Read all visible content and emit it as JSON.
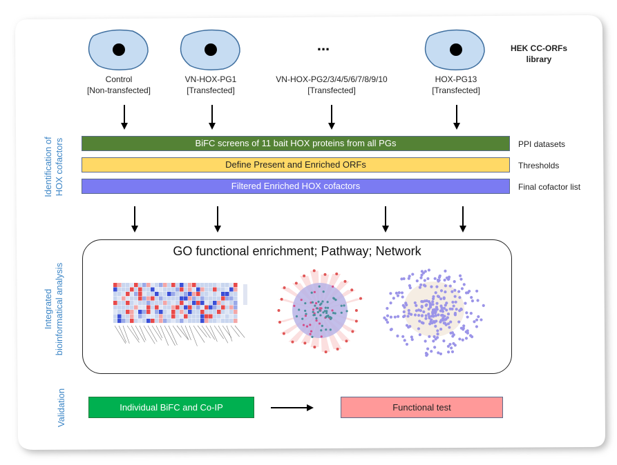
{
  "library_title": "HEK CC-ORFs\nlibrary",
  "cells": [
    {
      "label1": "Control",
      "label2": "[Non-transfected]"
    },
    {
      "label1": "VN-HOX-PG1",
      "label2": "[Transfected]"
    },
    {
      "label1": "VN-HOX-PG2/3/4/5/6/7/8/9/10",
      "label2": "[Transfected]"
    },
    {
      "label1": "HOX-PG13",
      "label2": "[Transfected]"
    }
  ],
  "ellipsis": "...",
  "bars": [
    {
      "text": "BiFC screens of 11 bait HOX proteins from all PGs",
      "right": "PPI datasets",
      "color": "#548235",
      "text_color": "#ffffff"
    },
    {
      "text": "Define Present and Enriched ORFs",
      "right": "Thresholds",
      "color": "#ffd966",
      "text_color": "#222222"
    },
    {
      "text": "Filtered Enriched HOX cofactors",
      "right": "Final cofactor list",
      "color": "#7b7bf2",
      "text_color": "#ffffff"
    }
  ],
  "side_labels": {
    "identification": "Identification of\nHOX cofactors",
    "integrated": "Integrated\nbioinformatical analysis",
    "validation": "Validation"
  },
  "panel_title": "GO functional enrichment; Pathway; Network",
  "validation_boxes": [
    {
      "text": "Individual BiFC and Co-IP",
      "color": "#00b050",
      "text_color": "#ffffff"
    },
    {
      "text": "Functional test",
      "color": "#ff9999",
      "text_color": "#222222"
    }
  ],
  "colors": {
    "cell_fill": "#c6dcf2",
    "cell_stroke": "#3f6f9f",
    "side_label": "#3d86c6"
  }
}
